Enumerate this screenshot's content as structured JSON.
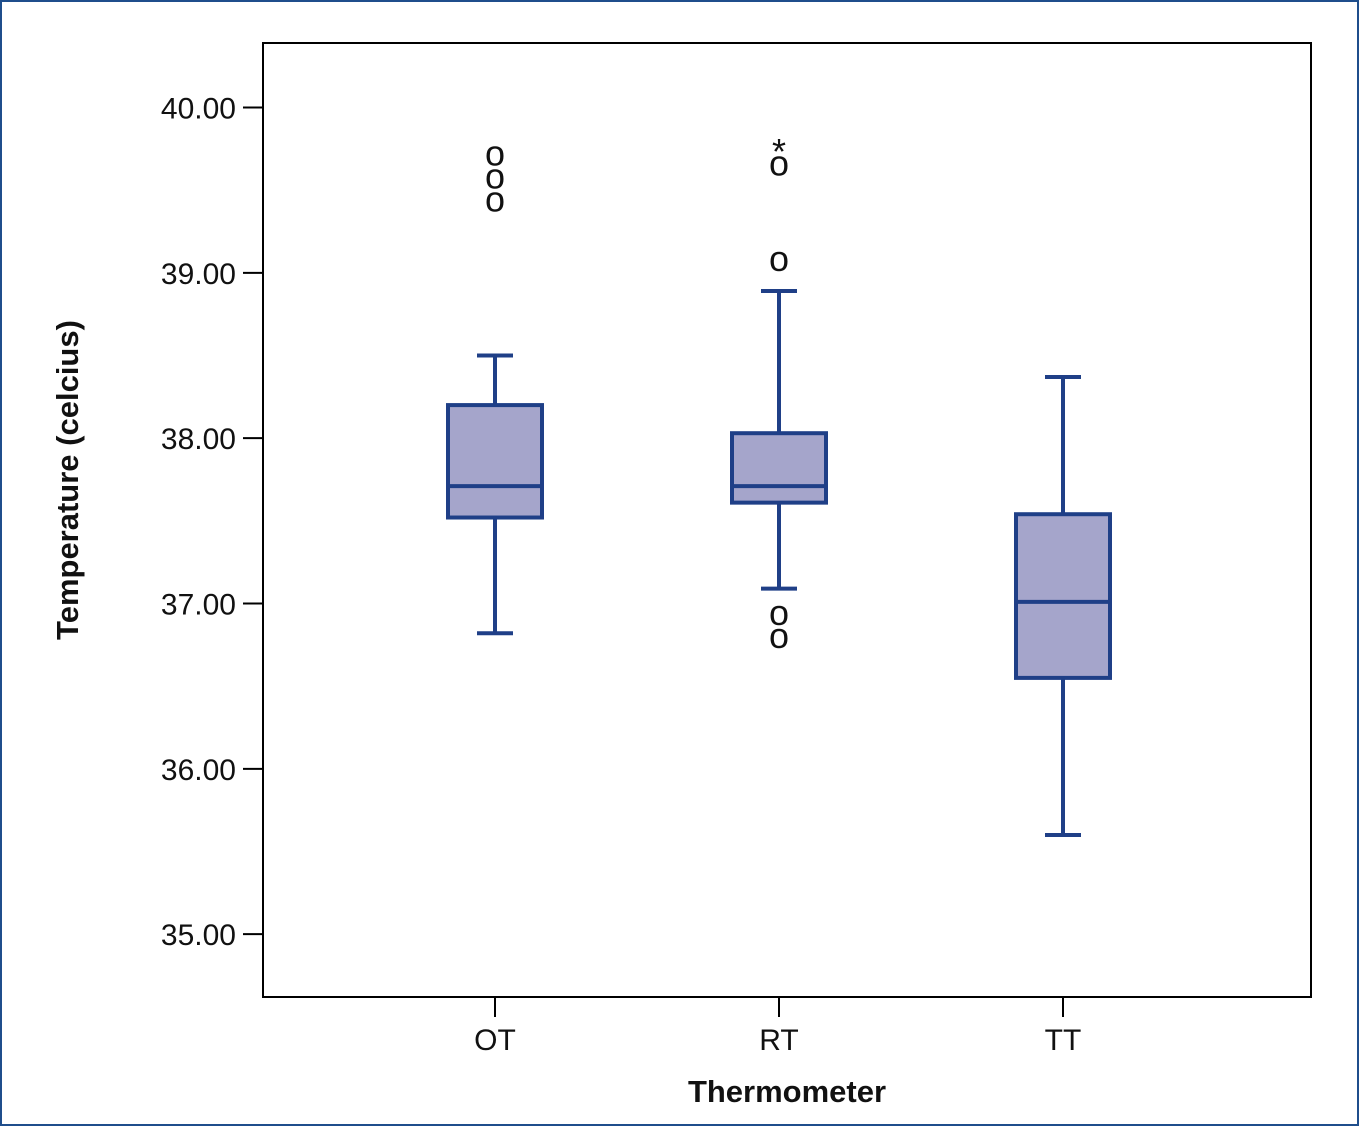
{
  "chart_data": {
    "type": "box",
    "xlabel": "Thermometer",
    "ylabel": "Temperature (celcius)",
    "ylim": [
      34.62,
      40.39
    ],
    "yticks": [
      35.0,
      36.0,
      37.0,
      38.0,
      39.0,
      40.0
    ],
    "ytick_labels": [
      "35.00",
      "36.00",
      "37.00",
      "38.00",
      "39.00",
      "40.00"
    ],
    "categories": [
      "OT",
      "RT",
      "TT"
    ],
    "boxes": [
      {
        "category": "OT",
        "whisker_low": 36.82,
        "q1": 37.52,
        "median": 37.71,
        "q3": 38.2,
        "whisker_high": 38.5,
        "outliers": [
          {
            "value": 39.71,
            "marker": "o"
          },
          {
            "value": 39.57,
            "marker": "o"
          },
          {
            "value": 39.43,
            "marker": "o"
          }
        ]
      },
      {
        "category": "RT",
        "whisker_low": 37.09,
        "q1": 37.61,
        "median": 37.71,
        "q3": 38.03,
        "whisker_high": 38.89,
        "outliers": [
          {
            "value": 39.79,
            "marker": "*"
          },
          {
            "value": 39.65,
            "marker": "o"
          },
          {
            "value": 39.07,
            "marker": "o"
          },
          {
            "value": 36.93,
            "marker": "o"
          },
          {
            "value": 36.79,
            "marker": "o"
          }
        ]
      },
      {
        "category": "TT",
        "whisker_low": 35.6,
        "q1": 36.55,
        "median": 37.01,
        "q3": 37.54,
        "whisker_high": 38.37,
        "outliers": []
      }
    ],
    "colors": {
      "box_fill": "#a5a5cb",
      "box_stroke": "#1f3f87",
      "axis": "#000000",
      "frame": "#1f4e8c"
    },
    "grid": false,
    "legend": "none"
  }
}
